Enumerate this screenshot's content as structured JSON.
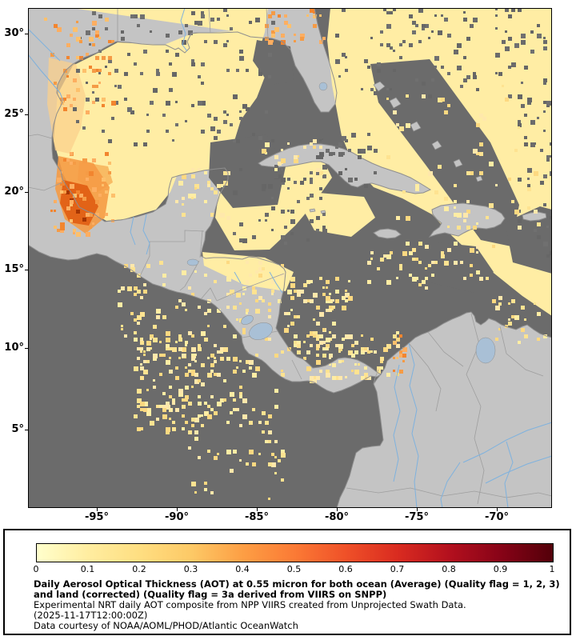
{
  "figure": {
    "type": "geographic-raster-map",
    "region": "Gulf of Mexico / Caribbean / Central America"
  },
  "map": {
    "lat_tick_labels": [
      "30°",
      "25°",
      "20°",
      "15°",
      "10°",
      "5°"
    ],
    "lon_tick_labels": [
      "-95°",
      "-90°",
      "-85°",
      "-80°",
      "-75°",
      "-70°"
    ],
    "colors": {
      "ocean_no_data": "#6b6b6b",
      "land_no_data": "#c4c4c4",
      "coastline": "#8e8e8e",
      "border": "#9e9e9e",
      "river": "#7fb2de",
      "lake": "#a9c0d6",
      "aot_low": "#ffeda4",
      "aot_mid": "#fdae61",
      "aot_high": "#e05c12",
      "aot_peak": "#a63603"
    }
  },
  "legend": {
    "tick_labels": [
      "0",
      "0.1",
      "0.2",
      "0.3",
      "0.4",
      "0.5",
      "0.6",
      "0.7",
      "0.8",
      "0.9",
      "1"
    ],
    "range_min": 0,
    "range_max": 1,
    "colorbar_stops": [
      "#ffffcc",
      "#ffeda0",
      "#fede81",
      "#fdc966",
      "#fd9e44",
      "#fb7a35",
      "#ef5028",
      "#d92b20",
      "#b3101e",
      "#870317",
      "#530009"
    ],
    "title": "Daily Aerosol Optical Thickness (AOT) at 0.55 micron for both ocean (Average) (Quality flag = 1, 2, 3) and land (corrected) (Quality flag = 3a derived from VIIRS on SNPP)",
    "subtitle": "Experimental NRT daily AOT composite from NPP VIIRS created from Unprojected Swath Data.",
    "timestamp": "(2025-11-17T12:00:00Z)",
    "credit": "Data courtesy of NOAA/AOML/PHOD/Atlantic OceanWatch"
  }
}
